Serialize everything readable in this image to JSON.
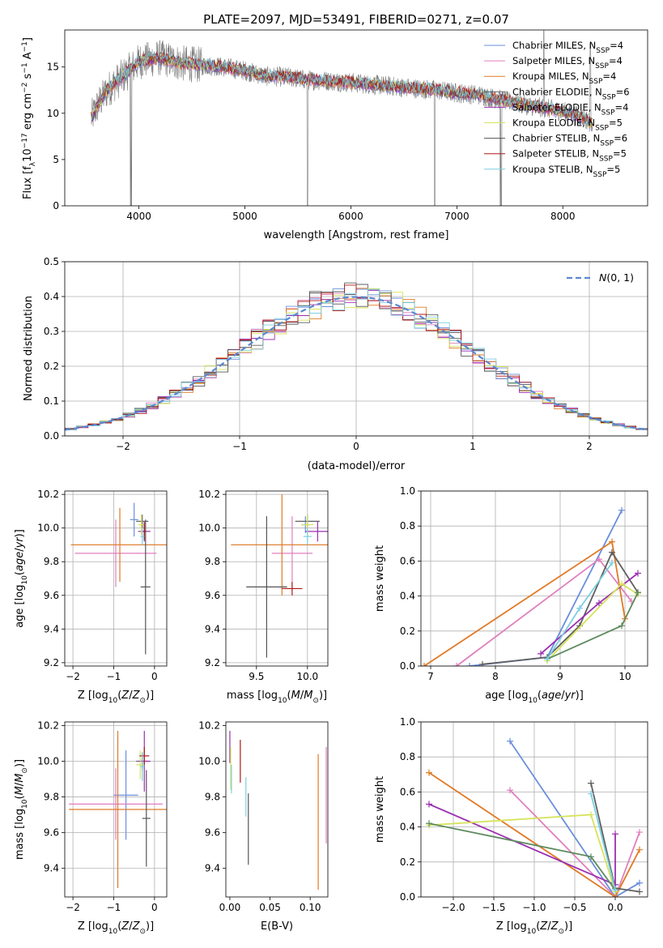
{
  "figure_title": "PLATE=2097, MJD=53491, FIBERID=0271, z=0.07",
  "colors": {
    "chabrier_miles": "#6a8fdc",
    "salpeter_miles": "#e07fbf",
    "kroupa_miles": "#e07a26",
    "chabrier_elodie": "#5f5f5f",
    "salpeter_elodie": "#9b2fb0",
    "kroupa_elodie": "#d6e35a",
    "chabrier_stelib": "#555555",
    "salpeter_stelib": "#b01818",
    "kroupa_stelib": "#7bcfe0",
    "mass_weight_green": "#5e8a5e",
    "normal_curve": "#5b87d0"
  },
  "chart_data": [
    {
      "type": "line",
      "panel": "spectrum",
      "title": "PLATE=2097, MJD=53491, FIBERID=0271, z=0.07",
      "xlabel": "wavelength [Angstrom, rest frame]",
      "ylabel": "Flux [f_λ 10^-17 erg cm^-2 s^-1 A^-1]",
      "xlim": [
        3300,
        8800
      ],
      "ylim": [
        0,
        19
      ],
      "xticks": [
        "4000",
        "5000",
        "6000",
        "7000",
        "8000"
      ],
      "yticks": [
        "0",
        "5",
        "10",
        "15"
      ],
      "legend_position": "upper-right",
      "grid": false,
      "series": [
        {
          "name": "Chabrier MILES, N_SSP=4",
          "key": "chabrier_miles"
        },
        {
          "name": "Salpeter MILES, N_SSP=4",
          "key": "salpeter_miles"
        },
        {
          "name": "Kroupa MILES, N_SSP=4",
          "key": "kroupa_miles"
        },
        {
          "name": "Chabrier ELODIE, N_SSP=6",
          "key": "chabrier_elodie"
        },
        {
          "name": "Salpeter ELODIE, N_SSP=4",
          "key": "salpeter_elodie"
        },
        {
          "name": "Kroupa ELODIE, N_SSP=5",
          "key": "kroupa_elodie"
        },
        {
          "name": "Chabrier STELIB, N_SSP=6",
          "key": "chabrier_stelib"
        },
        {
          "name": "Salpeter STELIB, N_SSP=5",
          "key": "salpeter_stelib"
        },
        {
          "name": "Kroupa STELIB, N_SSP=5",
          "key": "kroupa_stelib"
        }
      ],
      "continuum": [
        [
          3550,
          9.5
        ],
        [
          3620,
          11.0
        ],
        [
          3700,
          12.5
        ],
        [
          3800,
          13.5
        ],
        [
          3900,
          14.5
        ],
        [
          4000,
          15.6
        ],
        [
          4200,
          16.0
        ],
        [
          4400,
          15.4
        ],
        [
          4600,
          15.2
        ],
        [
          4800,
          15.0
        ],
        [
          5000,
          14.6
        ],
        [
          5200,
          14.0
        ],
        [
          5400,
          13.9
        ],
        [
          5600,
          13.6
        ],
        [
          5800,
          13.5
        ],
        [
          6000,
          13.3
        ],
        [
          6200,
          13.1
        ],
        [
          6400,
          12.9
        ],
        [
          6600,
          12.7
        ],
        [
          6800,
          12.5
        ],
        [
          7000,
          12.2
        ],
        [
          7200,
          12.0
        ],
        [
          7400,
          11.5
        ],
        [
          7600,
          11.0
        ],
        [
          7800,
          10.6
        ],
        [
          8000,
          10.2
        ],
        [
          8200,
          9.5
        ],
        [
          8280,
          8.8
        ]
      ],
      "observed_features": [
        [
          3920,
          0
        ],
        [
          3930,
          0
        ],
        [
          5590,
          0
        ],
        [
          6790,
          0
        ],
        [
          7410,
          0
        ],
        [
          7420,
          0
        ],
        [
          7820,
          19
        ],
        [
          8260,
          17.5
        ]
      ]
    },
    {
      "type": "line",
      "panel": "residuals",
      "xlabel": "(data-model)/error",
      "ylabel": "Normed distribution",
      "xlim": [
        -2.5,
        2.5
      ],
      "ylim": [
        0,
        0.5
      ],
      "xticks": [
        "−2",
        "−1",
        "0",
        "1",
        "2"
      ],
      "yticks": [
        "0.0",
        "0.1",
        "0.2",
        "0.3",
        "0.4",
        "0.5"
      ],
      "grid": true,
      "legend_position": "upper-right",
      "legend": "N(0,1)",
      "bins": 50,
      "bin_width": 0.1
    },
    {
      "type": "scatter",
      "panel": "age_vs_Z",
      "xlabel": "Z [log10(Z/Z⊙)]",
      "ylabel": "age [log10(age/yr)]",
      "xlim": [
        -2.2,
        0.3
      ],
      "ylim": [
        9.18,
        10.22
      ],
      "xticks": [
        "−2",
        "−1",
        "0"
      ],
      "yticks": [
        "9.2",
        "9.4",
        "9.6",
        "9.8",
        "10.0",
        "10.2"
      ],
      "grid": true,
      "points": [
        {
          "key": "chabrier_miles",
          "x": -0.5,
          "y": 10.05,
          "xerr": 0.1,
          "yerr": 0.1
        },
        {
          "key": "salpeter_miles",
          "x": -0.95,
          "y": 9.85,
          "xerr": 1.0,
          "yerr": 0.2
        },
        {
          "key": "kroupa_miles",
          "x": -0.85,
          "y": 9.9,
          "xerr": 1.2,
          "yerr": 0.22
        },
        {
          "key": "chabrier_elodie",
          "x": -0.3,
          "y": 10.04,
          "xerr": 0.15,
          "yerr": 0.04
        },
        {
          "key": "salpeter_elodie",
          "x": -0.25,
          "y": 9.98,
          "xerr": 0.15,
          "yerr": 0.06
        },
        {
          "key": "kroupa_elodie",
          "x": -0.32,
          "y": 10.02,
          "xerr": 0.08,
          "yerr": 0.06
        },
        {
          "key": "chabrier_stelib",
          "x": -0.22,
          "y": 9.65,
          "xerr": 0.12,
          "yerr": 0.4
        },
        {
          "key": "salpeter_stelib",
          "x": -0.25,
          "y": 9.98,
          "xerr": 0.03,
          "yerr": 0.05
        },
        {
          "key": "kroupa_stelib",
          "x": -0.3,
          "y": 9.95,
          "xerr": 0.05,
          "yerr": 0.05
        }
      ]
    },
    {
      "type": "scatter",
      "panel": "age_vs_mass",
      "xlabel": "mass [log10(M/M⊙)]",
      "ylabel": "",
      "xlim": [
        9.2,
        10.2
      ],
      "ylim": [
        9.18,
        10.22
      ],
      "xticks": [
        "9.5",
        "10.0"
      ],
      "yticks": [
        "9.2",
        "9.4",
        "9.6",
        "9.8",
        "10.0",
        "10.2"
      ],
      "grid": true,
      "points": [
        {
          "key": "chabrier_miles",
          "x": 9.98,
          "y": 10.02,
          "xerr": 0.04,
          "yerr": 0.05
        },
        {
          "key": "salpeter_miles",
          "x": 9.85,
          "y": 9.85,
          "xerr": 0.2,
          "yerr": 0.22
        },
        {
          "key": "kroupa_miles",
          "x": 9.75,
          "y": 9.9,
          "xerr": 0.5,
          "yerr": 0.3
        },
        {
          "key": "chabrier_elodie",
          "x": 10.0,
          "y": 10.04,
          "xerr": 0.12,
          "yerr": 0.04
        },
        {
          "key": "salpeter_elodie",
          "x": 10.1,
          "y": 9.98,
          "xerr": 0.12,
          "yerr": 0.06
        },
        {
          "key": "kroupa_elodie",
          "x": 10.0,
          "y": 10.02,
          "xerr": 0.06,
          "yerr": 0.06
        },
        {
          "key": "chabrier_stelib",
          "x": 9.6,
          "y": 9.65,
          "xerr": 0.2,
          "yerr": 0.42
        },
        {
          "key": "salpeter_stelib",
          "x": 9.85,
          "y": 9.64,
          "xerr": 0.1,
          "yerr": 0.04
        },
        {
          "key": "kroupa_stelib",
          "x": 10.0,
          "y": 9.95,
          "xerr": 0.04,
          "yerr": 0.05
        }
      ]
    },
    {
      "type": "line",
      "panel": "mass_weight_vs_age",
      "xlabel": "age [log10(age/yr)]",
      "ylabel": "mass weight",
      "xlim": [
        6.85,
        10.35
      ],
      "ylim": [
        0,
        1
      ],
      "xticks": [
        "7",
        "8",
        "9",
        "10"
      ],
      "yticks": [
        "0.0",
        "0.2",
        "0.4",
        "0.6",
        "0.8",
        "1.0"
      ],
      "grid": true,
      "series": [
        {
          "key": "chabrier_miles",
          "x": [
            7.6,
            8.8,
            9.95
          ],
          "y": [
            0.0,
            0.05,
            0.89
          ]
        },
        {
          "key": "salpeter_miles",
          "x": [
            7.4,
            9.6,
            10.1
          ],
          "y": [
            0.0,
            0.61,
            0.37
          ]
        },
        {
          "key": "kroupa_miles",
          "x": [
            6.9,
            9.8,
            10.0
          ],
          "y": [
            0.0,
            0.71,
            0.27
          ]
        },
        {
          "key": "chabrier_elodie",
          "x": [
            7.8,
            8.8,
            9.3,
            9.8,
            10.2
          ],
          "y": [
            0.01,
            0.05,
            0.23,
            0.65,
            0.42
          ]
        },
        {
          "key": "salpeter_elodie",
          "x": [
            8.7,
            9.6,
            10.2
          ],
          "y": [
            0.07,
            0.36,
            0.53
          ]
        },
        {
          "key": "kroupa_elodie",
          "x": [
            8.8,
            9.95,
            10.2
          ],
          "y": [
            0.03,
            0.47,
            0.41
          ]
        },
        {
          "key": "mass_weight_green",
          "x": [
            8.8,
            9.95,
            10.2
          ],
          "y": [
            0.04,
            0.23,
            0.42
          ]
        },
        {
          "key": "kroupa_stelib",
          "x": [
            8.8,
            9.3,
            9.8
          ],
          "y": [
            0.04,
            0.33,
            0.59
          ]
        }
      ]
    },
    {
      "type": "scatter",
      "panel": "mass_vs_Z",
      "xlabel": "Z [log10(Z/Z⊙)]",
      "ylabel": "mass [log10(M/M⊙)]",
      "xlim": [
        -2.2,
        0.3
      ],
      "ylim": [
        9.24,
        10.22
      ],
      "xticks": [
        "−2",
        "−1",
        "0"
      ],
      "yticks": [
        "9.4",
        "9.6",
        "9.8",
        "10.0",
        "10.2"
      ],
      "grid": true,
      "points": [
        {
          "key": "chabrier_miles",
          "x": -0.7,
          "y": 9.81,
          "xerr": 0.3,
          "yerr": 0.25
        },
        {
          "key": "salpeter_miles",
          "x": -0.95,
          "y": 9.76,
          "xerr": 1.15,
          "yerr": 0.2
        },
        {
          "key": "kroupa_miles",
          "x": -0.9,
          "y": 9.73,
          "xerr": 1.2,
          "yerr": 0.44
        },
        {
          "key": "chabrier_elodie",
          "x": -0.3,
          "y": 10.0,
          "xerr": 0.15,
          "yerr": 0.05
        },
        {
          "key": "salpeter_elodie",
          "x": -0.25,
          "y": 10.0,
          "xerr": 0.15,
          "yerr": 0.17
        },
        {
          "key": "kroupa_elodie",
          "x": -0.35,
          "y": 9.98,
          "xerr": 0.1,
          "yerr": 0.08
        },
        {
          "key": "chabrier_stelib",
          "x": -0.2,
          "y": 9.68,
          "xerr": 0.1,
          "yerr": 0.27
        },
        {
          "key": "salpeter_stelib",
          "x": -0.25,
          "y": 10.03,
          "xerr": 0.12,
          "yerr": 0.05
        },
        {
          "key": "kroupa_stelib",
          "x": -0.3,
          "y": 9.97,
          "xerr": 0.05,
          "yerr": 0.08
        }
      ]
    },
    {
      "type": "scatter",
      "panel": "mass_vs_EBV",
      "xlabel": "E(B-V)",
      "ylabel": "",
      "xlim": [
        -0.005,
        0.122
      ],
      "ylim": [
        9.24,
        10.22
      ],
      "xticks": [
        "0.00",
        "0.05",
        "0.10"
      ],
      "yticks": [
        "9.4",
        "9.6",
        "9.8",
        "10.0",
        "10.2"
      ],
      "grid": false,
      "points": [
        {
          "key": "salpeter_elodie",
          "x": 0.0,
          "y": 10.08,
          "yerr": 0.09
        },
        {
          "key": "kroupa_elodie",
          "x": 0.001,
          "y": 9.96,
          "yerr": 0.12
        },
        {
          "key": "kroupa_stelib",
          "x": 0.002,
          "y": 9.9,
          "yerr": 0.08
        },
        {
          "key": "salpeter_stelib",
          "x": 0.013,
          "y": 10.0,
          "yerr": 0.12
        },
        {
          "key": "kroupa_stelib",
          "x": 0.02,
          "y": 9.8,
          "yerr": 0.11
        },
        {
          "key": "chabrier_stelib",
          "x": 0.023,
          "y": 9.62,
          "yerr": 0.2
        },
        {
          "key": "kroupa_miles",
          "x": 0.11,
          "y": 9.66,
          "yerr": 0.38
        },
        {
          "key": "salpeter_miles",
          "x": 0.12,
          "y": 9.81,
          "yerr": 0.27
        }
      ]
    },
    {
      "type": "line",
      "panel": "mass_weight_vs_Z",
      "xlabel": "Z [log10(Z/Z⊙)]",
      "ylabel": "mass weight",
      "xlim": [
        -2.4,
        0.4
      ],
      "ylim": [
        0,
        1
      ],
      "xticks": [
        "−2.0",
        "−1.5",
        "−1.0",
        "−0.5",
        "0.0"
      ],
      "yticks": [
        "0.0",
        "0.2",
        "0.4",
        "0.6",
        "0.8",
        "1.0"
      ],
      "grid": true,
      "series": [
        {
          "key": "chabrier_miles",
          "x": [
            -1.3,
            0.0,
            0.3
          ],
          "y": [
            0.89,
            0.0,
            0.08
          ]
        },
        {
          "key": "salpeter_miles",
          "x": [
            -1.3,
            0.0,
            0.3
          ],
          "y": [
            0.61,
            0.0,
            0.37
          ]
        },
        {
          "key": "kroupa_miles",
          "x": [
            -2.3,
            0.0,
            0.3
          ],
          "y": [
            0.71,
            0.0,
            0.27
          ]
        },
        {
          "key": "chabrier_elodie",
          "x": [
            -0.3,
            0.0,
            0.3
          ],
          "y": [
            0.65,
            0.05,
            0.03
          ]
        },
        {
          "key": "salpeter_elodie",
          "x": [
            -2.3,
            0.0,
            0.0
          ],
          "y": [
            0.53,
            0.07,
            0.36
          ]
        },
        {
          "key": "kroupa_elodie",
          "x": [
            -2.3,
            -0.3,
            0.0
          ],
          "y": [
            0.41,
            0.47,
            0.03
          ]
        },
        {
          "key": "mass_weight_green",
          "x": [
            -2.3,
            -0.3,
            0.0
          ],
          "y": [
            0.42,
            0.23,
            0.04
          ]
        },
        {
          "key": "kroupa_stelib",
          "x": [
            -0.3,
            0.0
          ],
          "y": [
            0.59,
            0.04
          ]
        }
      ]
    }
  ]
}
